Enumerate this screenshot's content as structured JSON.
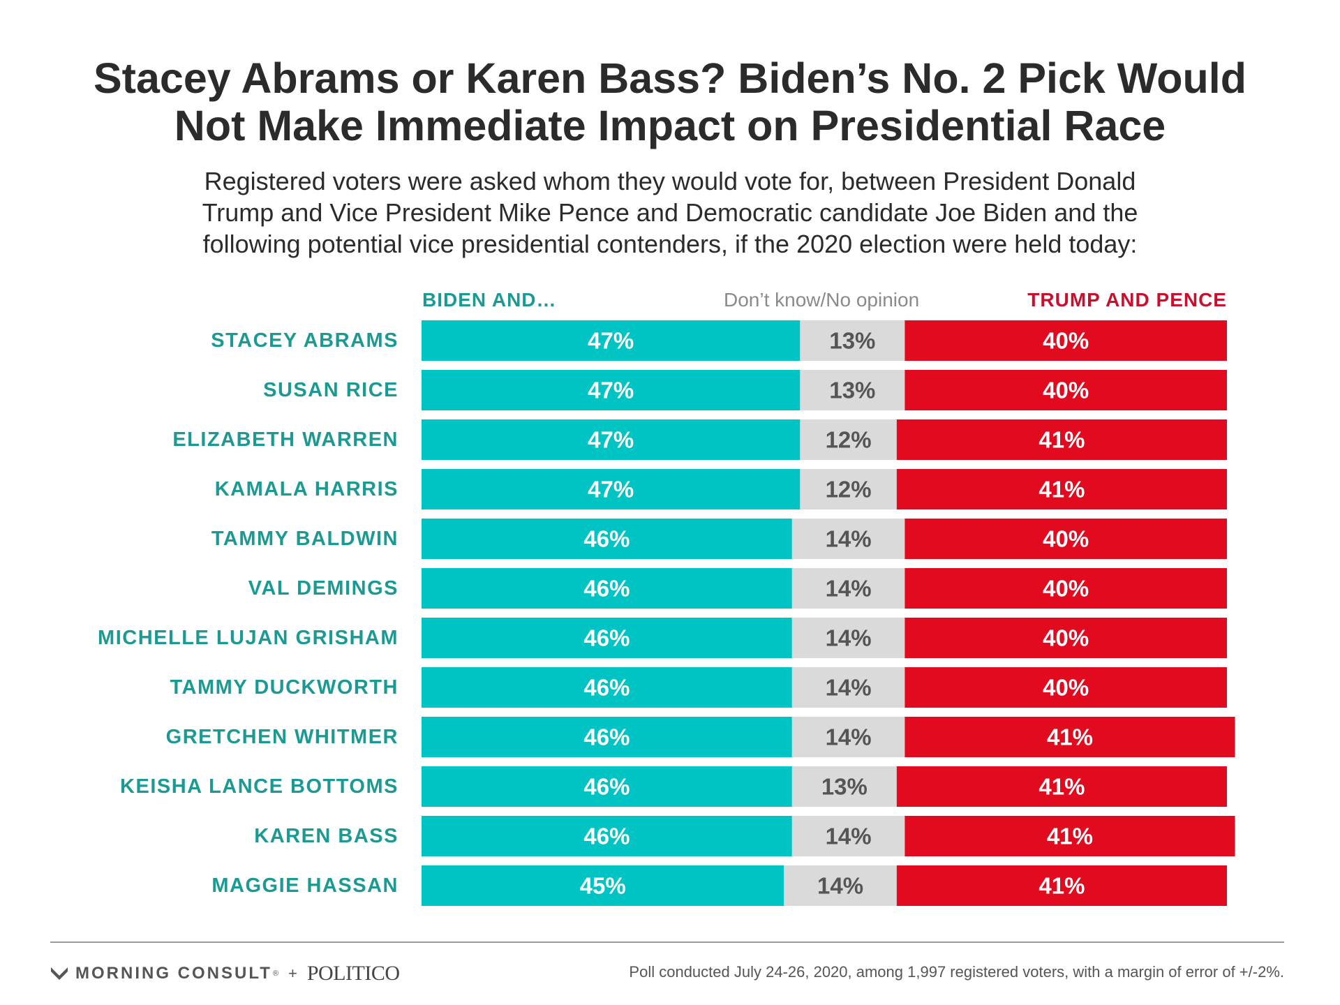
{
  "chart_data": {
    "type": "bar",
    "stacked": true,
    "orientation": "horizontal",
    "title": "Stacey Abrams or Karen Bass? Biden’s No. 2 Pick Would\nNot Make Immediate Impact on Presidential Race",
    "subtitle": "Registered voters were asked whom they would vote for, between President Donald\nTrump and Vice President Mike Pence and Democratic candidate Joe Biden and the\nfollowing potential vice presidential contenders, if the 2020 election were held today:",
    "categories": [
      "STACEY ABRAMS",
      "SUSAN RICE",
      "ELIZABETH WARREN",
      "KAMALA HARRIS",
      "TAMMY BALDWIN",
      "VAL DEMINGS",
      "MICHELLE LUJAN GRISHAM",
      "TAMMY DUCKWORTH",
      "GRETCHEN WHITMER",
      "KEISHA LANCE BOTTOMS",
      "KAREN BASS",
      "MAGGIE HASSAN"
    ],
    "series": [
      {
        "name": "BIDEN AND…",
        "color": "#00c4c4",
        "text_color": "#ffffff",
        "values": [
          47,
          47,
          47,
          47,
          46,
          46,
          46,
          46,
          46,
          46,
          46,
          45
        ]
      },
      {
        "name": "Don’t know/No opinion",
        "color": "#dadada",
        "text_color": "#555555",
        "values": [
          13,
          13,
          12,
          12,
          14,
          14,
          14,
          14,
          14,
          13,
          14,
          14
        ]
      },
      {
        "name": "TRUMP AND PENCE",
        "color": "#e10a1e",
        "text_color": "#ffffff",
        "values": [
          40,
          40,
          41,
          41,
          40,
          40,
          40,
          40,
          41,
          41,
          41,
          41
        ]
      }
    ],
    "value_suffix": "%",
    "xlim": [
      0,
      100
    ],
    "legend": "top",
    "grid": false
  },
  "footer": {
    "brand_left": "MORNING CONSULT",
    "brand_tm": "®",
    "plus": "+",
    "brand_right": "POLITICO",
    "note": "Poll conducted July 24-26, 2020, among 1,997 registered voters, with a margin of error of +/-2%."
  },
  "colors": {
    "label_teal": "#1a9a93",
    "title_text": "#2b2b2b"
  },
  "icons": {
    "brand_mark": "morning-consult-logo-icon"
  }
}
